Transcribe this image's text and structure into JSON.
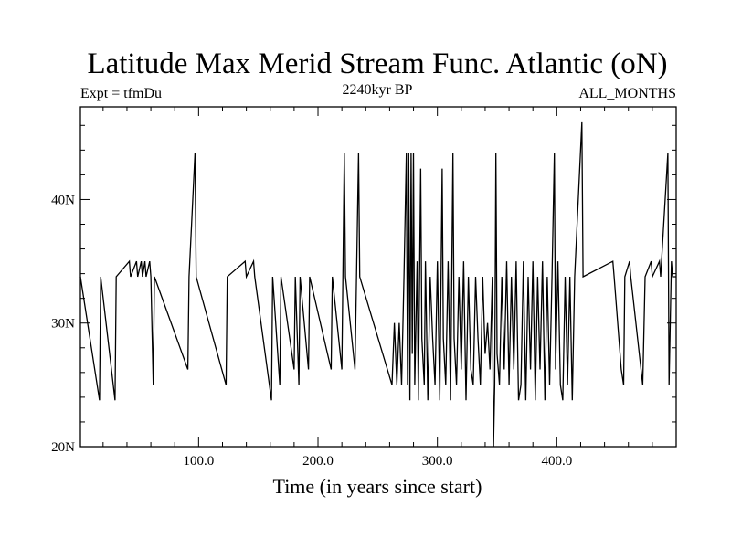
{
  "chart_data": {
    "type": "line",
    "title": "Latitude Max Merid Stream Func. Atlantic (oN)",
    "left_subtitle": "Expt = tfmDu",
    "center_subtitle": "2240kyr BP",
    "right_subtitle": "ALL_MONTHS",
    "xlabel": "Time (in years since start)",
    "ylabel": "",
    "xlim": [
      1,
      500
    ],
    "ylim": [
      20,
      47.5
    ],
    "x_ticks": [
      100,
      200,
      300,
      400
    ],
    "x_tick_labels": [
      "100.0",
      "200.0",
      "300.0",
      "400.0"
    ],
    "y_ticks": [
      20,
      30,
      40
    ],
    "y_tick_labels": [
      "20N",
      "30N",
      "40N"
    ],
    "grid": false,
    "legend": "none",
    "baseline": 33.75,
    "line_color": "#000000",
    "series": [
      {
        "deviations": [
          [
            17,
            23.75
          ],
          [
            18,
            33.75
          ],
          [
            30,
            23.75
          ],
          [
            31,
            33.75
          ],
          [
            42,
            35.0
          ],
          [
            43,
            33.75
          ],
          [
            48,
            35.0
          ],
          [
            49,
            33.75
          ],
          [
            52,
            35.0
          ],
          [
            53,
            33.75
          ],
          [
            55,
            35.0
          ],
          [
            56,
            33.75
          ],
          [
            59,
            35.0
          ],
          [
            60,
            33.75
          ],
          [
            62,
            25.0
          ],
          [
            63,
            33.75
          ],
          [
            91,
            26.25
          ],
          [
            92,
            33.75
          ],
          [
            97,
            43.75
          ],
          [
            98,
            33.75
          ],
          [
            123,
            25.0
          ],
          [
            124,
            33.75
          ],
          [
            139,
            35.0
          ],
          [
            140,
            33.75
          ],
          [
            146,
            35.0
          ],
          [
            147,
            33.75
          ],
          [
            161,
            23.75
          ],
          [
            162,
            33.75
          ],
          [
            168,
            25.0
          ],
          [
            169,
            33.75
          ],
          [
            180,
            26.25
          ],
          [
            181,
            33.75
          ],
          [
            184,
            25.0
          ],
          [
            185,
            33.75
          ],
          [
            192,
            26.25
          ],
          [
            193,
            33.75
          ],
          [
            211,
            26.25
          ],
          [
            212,
            33.75
          ],
          [
            220,
            26.25
          ],
          [
            222,
            43.75
          ],
          [
            223,
            33.75
          ],
          [
            231,
            26.25
          ],
          [
            234,
            43.75
          ],
          [
            235,
            33.75
          ],
          [
            262,
            25.0
          ],
          [
            264,
            30.0
          ],
          [
            266,
            25.0
          ],
          [
            268,
            30.0
          ],
          [
            270,
            25.0
          ],
          [
            272,
            33.75
          ],
          [
            274,
            43.75
          ],
          [
            275,
            25.0
          ],
          [
            276,
            43.75
          ],
          [
            277,
            23.75
          ],
          [
            278,
            43.75
          ],
          [
            279,
            27.5
          ],
          [
            280,
            43.75
          ],
          [
            281,
            25.0
          ],
          [
            283,
            35.0
          ],
          [
            284,
            23.75
          ],
          [
            286,
            42.5
          ],
          [
            287,
            28.75
          ],
          [
            289,
            25.0
          ],
          [
            290,
            35.0
          ],
          [
            292,
            23.75
          ],
          [
            294,
            33.75
          ],
          [
            296,
            28.75
          ],
          [
            298,
            25.0
          ],
          [
            300,
            35.0
          ],
          [
            302,
            23.75
          ],
          [
            304,
            42.5
          ],
          [
            305,
            28.75
          ],
          [
            307,
            25.0
          ],
          [
            309,
            35.0
          ],
          [
            311,
            23.75
          ],
          [
            313,
            43.75
          ],
          [
            314,
            28.75
          ],
          [
            316,
            25.0
          ],
          [
            318,
            33.75
          ],
          [
            320,
            26.25
          ],
          [
            322,
            35.0
          ],
          [
            324,
            23.75
          ],
          [
            326,
            33.75
          ],
          [
            328,
            26.25
          ],
          [
            330,
            25.0
          ],
          [
            332,
            33.75
          ],
          [
            334,
            28.75
          ],
          [
            336,
            25.0
          ],
          [
            338,
            33.75
          ],
          [
            340,
            27.5
          ],
          [
            342,
            30.0
          ],
          [
            344,
            26.25
          ],
          [
            346,
            33.75
          ],
          [
            347,
            20.0
          ],
          [
            348,
            25.0
          ],
          [
            349,
            43.75
          ],
          [
            350,
            27.5
          ],
          [
            352,
            25.0
          ],
          [
            354,
            33.75
          ],
          [
            356,
            26.25
          ],
          [
            358,
            35.0
          ],
          [
            360,
            25.0
          ],
          [
            362,
            33.75
          ],
          [
            364,
            26.25
          ],
          [
            366,
            35.0
          ],
          [
            368,
            23.75
          ],
          [
            370,
            25.0
          ],
          [
            372,
            35.0
          ],
          [
            374,
            23.75
          ],
          [
            376,
            33.75
          ],
          [
            378,
            26.25
          ],
          [
            380,
            35.0
          ],
          [
            382,
            23.75
          ],
          [
            384,
            33.75
          ],
          [
            386,
            26.25
          ],
          [
            388,
            35.0
          ],
          [
            390,
            23.75
          ],
          [
            392,
            33.75
          ],
          [
            394,
            25.0
          ],
          [
            396,
            33.75
          ],
          [
            398,
            43.75
          ],
          [
            399,
            26.25
          ],
          [
            401,
            35.0
          ],
          [
            403,
            25.0
          ],
          [
            405,
            23.75
          ],
          [
            407,
            33.75
          ],
          [
            409,
            25.0
          ],
          [
            411,
            33.75
          ],
          [
            413,
            23.75
          ],
          [
            415,
            33.75
          ],
          [
            421,
            46.25
          ],
          [
            422,
            33.75
          ],
          [
            447,
            35.0
          ],
          [
            448,
            33.75
          ],
          [
            454,
            26.25
          ],
          [
            456,
            25.0
          ],
          [
            457,
            33.75
          ],
          [
            461,
            35.0
          ],
          [
            462,
            33.75
          ],
          [
            472,
            25.0
          ],
          [
            474,
            33.75
          ],
          [
            479,
            35.0
          ],
          [
            480,
            33.75
          ],
          [
            486,
            35.0
          ],
          [
            487,
            33.75
          ],
          [
            493,
            43.75
          ],
          [
            494,
            25.0
          ],
          [
            496,
            35.0
          ],
          [
            497,
            33.75
          ]
        ]
      }
    ]
  }
}
